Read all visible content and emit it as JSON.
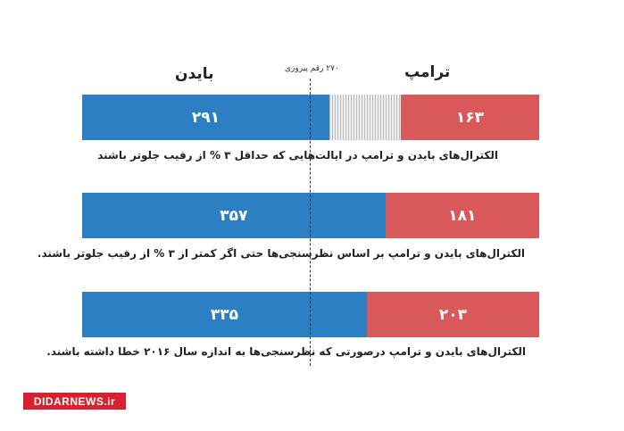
{
  "labels": {
    "biden": "بایدن",
    "trump": "ترامپ",
    "threshold": "۲۷۰ رقم پیروزی"
  },
  "colors": {
    "biden": "#2d7fc4",
    "trump": "#d9585a",
    "undecided": "#e8e8e8"
  },
  "total_electoral_votes": 538,
  "threshold_value": 270,
  "chart_data": {
    "type": "bar",
    "orientation": "horizontal-stacked",
    "rows": [
      {
        "caption": "الکترال‌های بایدن و ترامپ در ایالت‌هایی که حداقل ۳ % از رقیب جلوتر باشند",
        "biden": 291,
        "trump": 163,
        "biden_label": "۲۹۱",
        "trump_label": "۱۶۳"
      },
      {
        "caption": "الکترال‌های بایدن و ترامپ بر اساس نظرسنجی‌ها حتی اگر کمتر از ۳ % از رقیب جلوتر باشند.",
        "biden": 357,
        "trump": 181,
        "biden_label": "۳۵۷",
        "trump_label": "۱۸۱"
      },
      {
        "caption": "الکترال‌های بایدن و ترامپ درصورتی که نظرسنجی‌ها به اندازه سال ۲۰۱۶ خطا داشته باشند.",
        "biden": 335,
        "trump": 203,
        "biden_label": "۳۳۵",
        "trump_label": "۲۰۳"
      }
    ]
  },
  "brand": {
    "logo_text": "DIDARNEWS.ir"
  }
}
